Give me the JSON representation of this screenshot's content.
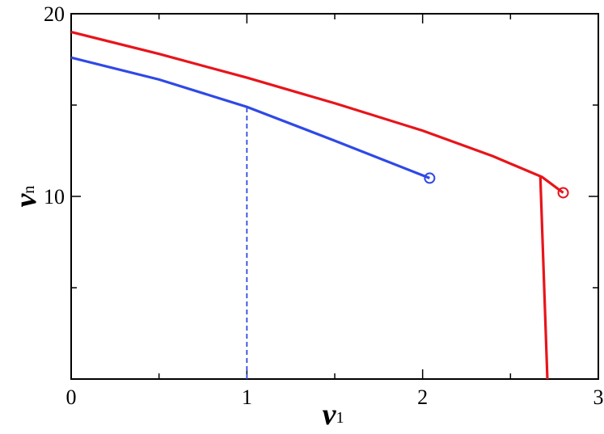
{
  "chart_data": {
    "type": "line",
    "x_label": {
      "main": "v",
      "sub": "1"
    },
    "y_label": {
      "main": "v",
      "sub": "n"
    },
    "xlim": [
      0,
      3
    ],
    "xticks": [
      0,
      1,
      2,
      3
    ],
    "xminor": [
      0.5,
      1.5,
      2.5
    ],
    "ylim": [
      0,
      20
    ],
    "yticks": [
      10,
      20
    ],
    "yminor": [
      0,
      5,
      15
    ],
    "series": [
      {
        "color": "#e8141b",
        "x": [
          0,
          0.5,
          1,
          1.5,
          2,
          2.4,
          2.68,
          2.8
        ],
        "values": [
          19.0,
          17.8,
          16.5,
          15.1,
          13.6,
          12.2,
          11.06,
          10.2
        ],
        "end_marker": true
      },
      {
        "color": "#e8141b",
        "x": [
          2.67,
          2.71
        ],
        "values": [
          11.06,
          0
        ]
      },
      {
        "color": "#2f49e6",
        "x": [
          0,
          0.5,
          1,
          1.5,
          2.04
        ],
        "values": [
          17.6,
          16.4,
          14.9,
          13.05,
          11.0
        ],
        "end_marker": true
      },
      {
        "color": "#2f49e6",
        "x": [
          1,
          1
        ],
        "values": [
          0,
          14.9
        ],
        "dashed": true
      }
    ]
  }
}
